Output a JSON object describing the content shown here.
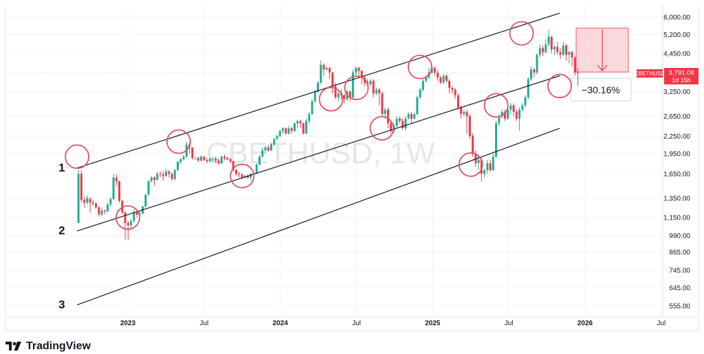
{
  "symbol": "CBETHUSD",
  "watermark": "CBETHUSD, 1W",
  "brand": "TradingView",
  "price_badge": {
    "value": "3,791.08",
    "countdown": "1d 15h"
  },
  "measure_label": "−30.16%",
  "colors": {
    "up": "#22ab94",
    "down": "#f23645",
    "circle": "#e0525f",
    "line": "#131722",
    "grid": "#f0f3fa"
  },
  "chart_data": {
    "type": "candlestick",
    "timeframe": "1W",
    "y_scale": "log",
    "ylim": [
      520,
      6700
    ],
    "y_ticks": [
      "6,000.00",
      "5,200.00",
      "4,450.00",
      "3,250.00",
      "2,650.00",
      "2,250.00",
      "1,950.00",
      "1,650.00",
      "1,350.00",
      "1,150.00",
      "990.00",
      "865.00",
      "745.00",
      "645.00",
      "555.00"
    ],
    "x_ticks": [
      "2023",
      "Jul",
      "2024",
      "Jul",
      "2025",
      "Jul",
      "2026",
      "Jul"
    ],
    "x_tick_years": [
      "2023",
      "2024",
      "2025",
      "2026"
    ],
    "channel_labels": [
      "1",
      "2",
      "3"
    ],
    "last_price": 3791.08,
    "measured_drawdown_pct": -30.16,
    "channel_lines": [
      {
        "label": "1",
        "from": [
          "2022-09",
          1730
        ],
        "to": [
          "2025-11",
          6200
        ]
      },
      {
        "label": "2",
        "from": [
          "2022-09",
          1030
        ],
        "to": [
          "2025-11",
          3700
        ]
      },
      {
        "label": "3",
        "from": [
          "2022-09",
          560
        ],
        "to": [
          "2025-11",
          2400
        ]
      }
    ],
    "circled_touches": [
      [
        "2022-09",
        1900
      ],
      [
        "2023-01",
        1150
      ],
      [
        "2023-05",
        2150
      ],
      [
        "2023-10",
        1620
      ],
      [
        "2024-05",
        3050
      ],
      [
        "2024-07",
        3350
      ],
      [
        "2024-09",
        2400
      ],
      [
        "2024-12",
        3980
      ],
      [
        "2025-04",
        1780
      ],
      [
        "2025-06",
        2900
      ],
      [
        "2025-08",
        5250
      ],
      [
        "2025-11",
        3400
      ]
    ],
    "candles": [
      [
        1100,
        1650,
        1700,
        1300
      ],
      [
        1650,
        1330,
        1700,
        1300
      ],
      [
        1330,
        1300,
        1370,
        1250
      ],
      [
        1300,
        1350,
        1380,
        1280
      ],
      [
        1340,
        1300,
        1360,
        1200
      ],
      [
        1300,
        1290,
        1330,
        1270
      ],
      [
        1290,
        1250,
        1310,
        1240
      ],
      [
        1250,
        1180,
        1260,
        1160
      ],
      [
        1180,
        1220,
        1250,
        1160
      ],
      [
        1220,
        1210,
        1230,
        1180
      ],
      [
        1210,
        1280,
        1300,
        1200
      ],
      [
        1280,
        1340,
        1360,
        1260
      ],
      [
        1340,
        1600,
        1650,
        1330
      ],
      [
        1600,
        1550,
        1640,
        1500
      ],
      [
        1550,
        1320,
        1560,
        1300
      ],
      [
        1320,
        1200,
        1330,
        1180
      ],
      [
        1200,
        1100,
        1210,
        960
      ],
      [
        1100,
        1080,
        1120,
        960
      ],
      [
        1080,
        1120,
        1140,
        1050
      ],
      [
        1120,
        1200,
        1230,
        1100
      ],
      [
        1200,
        1180,
        1220,
        1150
      ],
      [
        1180,
        1190,
        1210,
        1170
      ],
      [
        1190,
        1260,
        1270,
        1180
      ],
      [
        1260,
        1390,
        1400,
        1250
      ],
      [
        1390,
        1550,
        1570,
        1380
      ],
      [
        1550,
        1600,
        1620,
        1540
      ],
      [
        1600,
        1570,
        1620,
        1500
      ],
      [
        1570,
        1650,
        1680,
        1560
      ],
      [
        1650,
        1640,
        1680,
        1600
      ],
      [
        1640,
        1620,
        1690,
        1560
      ],
      [
        1620,
        1680,
        1720,
        1610
      ],
      [
        1680,
        1650,
        1700,
        1600
      ],
      [
        1650,
        1580,
        1670,
        1560
      ],
      [
        1580,
        1700,
        1720,
        1560
      ],
      [
        1700,
        1820,
        1830,
        1690
      ],
      [
        1820,
        1860,
        1880,
        1790
      ],
      [
        1860,
        1900,
        1930,
        1840
      ],
      [
        1900,
        2100,
        2150,
        1880
      ],
      [
        2100,
        2050,
        2130,
        1950
      ],
      [
        2050,
        1880,
        1990,
        1850
      ],
      [
        1880,
        1880,
        1890,
        1850
      ],
      [
        1880,
        1840,
        1900,
        1820
      ],
      [
        1840,
        1900,
        1920,
        1830
      ],
      [
        1900,
        1850,
        1910,
        1830
      ],
      [
        1850,
        1830,
        1880,
        1800
      ],
      [
        1830,
        1870,
        1880,
        1810
      ],
      [
        1870,
        1870,
        1900,
        1820
      ],
      [
        1870,
        1840,
        1900,
        1800
      ],
      [
        1840,
        1800,
        1870,
        1780
      ],
      [
        1800,
        1900,
        1920,
        1790
      ],
      [
        1900,
        1880,
        1930,
        1850
      ],
      [
        1880,
        1860,
        1900,
        1850
      ],
      [
        1860,
        1830,
        1880,
        1800
      ],
      [
        1830,
        1700,
        1840,
        1680
      ],
      [
        1700,
        1650,
        1720,
        1620
      ],
      [
        1650,
        1640,
        1680,
        1600
      ],
      [
        1640,
        1600,
        1660,
        1580
      ],
      [
        1600,
        1620,
        1640,
        1590
      ],
      [
        1620,
        1600,
        1640,
        1580
      ],
      [
        1600,
        1650,
        1660,
        1560
      ],
      [
        1650,
        1660,
        1680,
        1640
      ],
      [
        1660,
        1780,
        1800,
        1650
      ],
      [
        1780,
        1900,
        1920,
        1770
      ],
      [
        1900,
        2000,
        2050,
        1890
      ],
      [
        2000,
        2050,
        2080,
        1950
      ],
      [
        2050,
        2000,
        2100,
        1980
      ],
      [
        2000,
        2100,
        2130,
        1990
      ],
      [
        2100,
        2200,
        2220,
        2080
      ],
      [
        2200,
        2250,
        2280,
        2180
      ],
      [
        2250,
        2350,
        2370,
        2230
      ],
      [
        2350,
        2400,
        2420,
        2300
      ],
      [
        2400,
        2300,
        2420,
        2280
      ],
      [
        2300,
        2400,
        2450,
        2280
      ],
      [
        2400,
        2350,
        2430,
        2300
      ],
      [
        2350,
        2500,
        2520,
        2330
      ],
      [
        2500,
        2550,
        2580,
        2400
      ],
      [
        2550,
        2500,
        2580,
        2400
      ],
      [
        2500,
        2300,
        2520,
        2280
      ],
      [
        2300,
        2550,
        2600,
        2290
      ],
      [
        2550,
        2700,
        2750,
        2500
      ],
      [
        2700,
        3000,
        3050,
        2680
      ],
      [
        3000,
        3250,
        3300,
        2950
      ],
      [
        3250,
        3500,
        3550,
        3200
      ],
      [
        3500,
        4050,
        4200,
        3450
      ],
      [
        4050,
        3900,
        4100,
        3700
      ],
      [
        3900,
        3950,
        4000,
        3850
      ],
      [
        3950,
        3800,
        3980,
        3600
      ],
      [
        3800,
        3400,
        3820,
        3200
      ],
      [
        3400,
        3100,
        3500,
        3050
      ],
      [
        3100,
        3200,
        3250,
        3000
      ],
      [
        3200,
        3150,
        3300,
        3050
      ],
      [
        3150,
        3050,
        3200,
        2950
      ],
      [
        3050,
        3250,
        3300,
        3000
      ],
      [
        3250,
        3100,
        3280,
        3000
      ],
      [
        3100,
        3800,
        3900,
        3050
      ],
      [
        3800,
        3950,
        4000,
        3700
      ],
      [
        3950,
        3850,
        3990,
        3700
      ],
      [
        3850,
        3650,
        3880,
        3450
      ],
      [
        3650,
        3500,
        3700,
        3400
      ],
      [
        3500,
        3450,
        3600,
        3380
      ],
      [
        3450,
        3550,
        3600,
        3400
      ],
      [
        3550,
        3200,
        3600,
        3100
      ],
      [
        3200,
        3300,
        3350,
        3150
      ],
      [
        3300,
        3200,
        3350,
        2900
      ],
      [
        3200,
        2700,
        3250,
        2650
      ],
      [
        2700,
        2800,
        2850,
        2600
      ],
      [
        2800,
        2500,
        2850,
        2400
      ],
      [
        2500,
        2350,
        2550,
        2300
      ],
      [
        2350,
        2450,
        2500,
        2300
      ],
      [
        2450,
        2600,
        2650,
        2420
      ],
      [
        2600,
        2550,
        2650,
        2500
      ],
      [
        2550,
        2400,
        2600,
        2380
      ],
      [
        2400,
        2600,
        2650,
        2350
      ],
      [
        2600,
        2700,
        2750,
        2580
      ],
      [
        2700,
        2600,
        2750,
        2500
      ],
      [
        2600,
        2700,
        2730,
        2580
      ],
      [
        2700,
        3100,
        3150,
        2680
      ],
      [
        3100,
        3300,
        3350,
        3050
      ],
      [
        3300,
        3550,
        3600,
        3250
      ],
      [
        3550,
        3650,
        3700,
        3500
      ],
      [
        3650,
        3800,
        3950,
        3600
      ],
      [
        3800,
        3950,
        4050,
        3750
      ],
      [
        3950,
        3800,
        4000,
        3700
      ],
      [
        3800,
        3650,
        3880,
        3550
      ],
      [
        3650,
        3500,
        3700,
        3450
      ],
      [
        3500,
        3700,
        3750,
        3450
      ],
      [
        3700,
        3550,
        3750,
        3500
      ],
      [
        3550,
        3350,
        3600,
        3200
      ],
      [
        3350,
        3300,
        3400,
        3200
      ],
      [
        3300,
        3150,
        3350,
        3050
      ],
      [
        3150,
        2850,
        3200,
        2800
      ],
      [
        2850,
        2700,
        2900,
        2600
      ],
      [
        2700,
        2750,
        2800,
        2650
      ],
      [
        2750,
        2650,
        2800,
        2300
      ],
      [
        2650,
        2250,
        2700,
        2200
      ],
      [
        2250,
        1950,
        2300,
        1900
      ],
      [
        1950,
        1800,
        2000,
        1750
      ],
      [
        1800,
        1850,
        1900,
        1700
      ],
      [
        1850,
        1650,
        1880,
        1550
      ],
      [
        1650,
        1700,
        1720,
        1600
      ],
      [
        1700,
        1800,
        1850,
        1650
      ],
      [
        1800,
        1700,
        1850,
        1680
      ],
      [
        1700,
        1900,
        1950,
        1690
      ],
      [
        1900,
        2500,
        2550,
        1880
      ],
      [
        2500,
        2650,
        2700,
        2450
      ],
      [
        2650,
        2750,
        2800,
        2600
      ],
      [
        2750,
        2600,
        2800,
        2550
      ],
      [
        2600,
        2800,
        2850,
        2580
      ],
      [
        2800,
        2900,
        2950,
        2700
      ],
      [
        2900,
        2750,
        2950,
        2650
      ],
      [
        2750,
        2600,
        2800,
        2550
      ],
      [
        2600,
        2800,
        2850,
        2350
      ],
      [
        2800,
        2900,
        2950,
        2750
      ],
      [
        2900,
        3100,
        3150,
        2850
      ],
      [
        3100,
        3600,
        3650,
        3050
      ],
      [
        3600,
        3900,
        4000,
        3550
      ],
      [
        3900,
        3800,
        3950,
        3650
      ],
      [
        3800,
        4400,
        4450,
        3750
      ],
      [
        4400,
        4650,
        4800,
        4300
      ],
      [
        4650,
        4500,
        4750,
        4350
      ],
      [
        4500,
        4800,
        5000,
        4450
      ],
      [
        4800,
        5100,
        5400,
        4700
      ],
      [
        5100,
        4600,
        5150,
        4450
      ],
      [
        4600,
        4700,
        4750,
        4400
      ],
      [
        4700,
        4500,
        4900,
        4400
      ],
      [
        4500,
        4400,
        4650,
        4250
      ],
      [
        4400,
        4750,
        4900,
        4350
      ],
      [
        4750,
        4400,
        4800,
        4200
      ],
      [
        4400,
        4500,
        4550,
        4100
      ],
      [
        4500,
        4300,
        4550,
        4000
      ],
      [
        4300,
        3800,
        4350,
        3700
      ],
      [
        3800,
        3791,
        3950,
        3400
      ]
    ]
  }
}
